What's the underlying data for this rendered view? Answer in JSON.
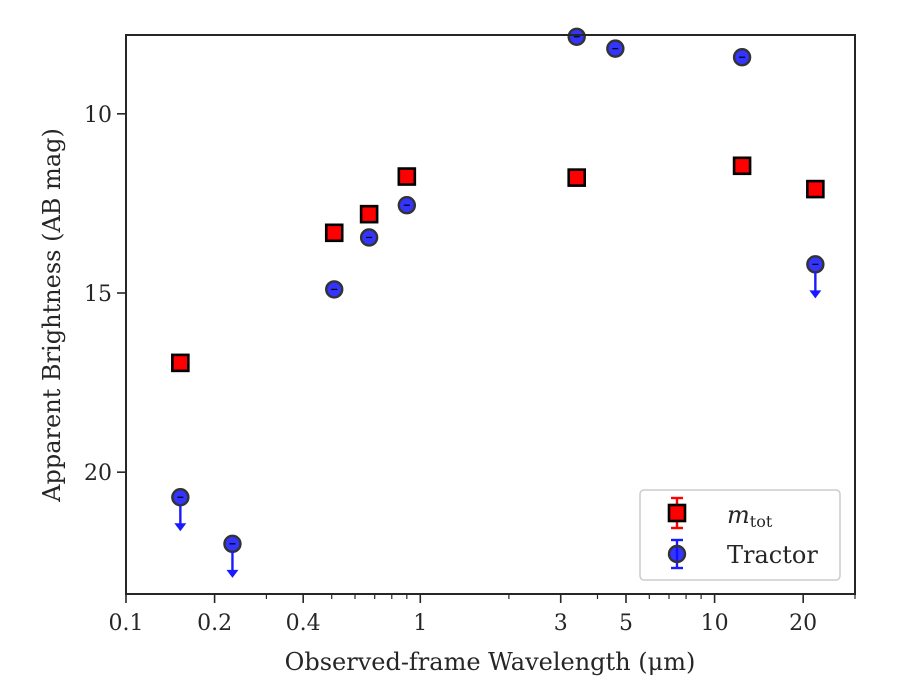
{
  "chart_data": {
    "type": "scatter",
    "title": "",
    "xlabel": "Observed-frame Wavelength (μm)",
    "ylabel": "Apparent Brightness (AB mag)",
    "xscale": "log",
    "xlim": [
      0.1,
      30
    ],
    "ylim": [
      23.4,
      7.8
    ],
    "y_inverted": true,
    "grid": false,
    "legend_position": "lower-right",
    "x_ticks": [
      {
        "value": 0.1,
        "label": "0.1"
      },
      {
        "value": 0.2,
        "label": "0.2"
      },
      {
        "value": 0.4,
        "label": "0.4"
      },
      {
        "value": 1,
        "label": "1"
      },
      {
        "value": 3,
        "label": "3"
      },
      {
        "value": 5,
        "label": "5"
      },
      {
        "value": 10,
        "label": "10"
      },
      {
        "value": 20,
        "label": "20"
      }
    ],
    "y_ticks": [
      {
        "value": 10,
        "label": "10"
      },
      {
        "value": 15,
        "label": "15"
      },
      {
        "value": 20,
        "label": "20"
      }
    ],
    "series": [
      {
        "name": "m_tot",
        "legend_main": "m",
        "legend_sub": "tot",
        "marker": "square",
        "color": "#ff0000",
        "edge_color": "#000000",
        "points": [
          {
            "x": 0.153,
            "y": 16.95
          },
          {
            "x": 0.51,
            "y": 13.32
          },
          {
            "x": 0.67,
            "y": 12.8
          },
          {
            "x": 0.9,
            "y": 11.75
          },
          {
            "x": 3.4,
            "y": 11.78
          },
          {
            "x": 12.4,
            "y": 11.45
          },
          {
            "x": 22.0,
            "y": 12.1
          }
        ]
      },
      {
        "name": "Tractor",
        "marker": "circle",
        "color": "#1010ff",
        "edge_color": "#333333",
        "points": [
          {
            "x": 0.153,
            "y": 20.7,
            "upper_limit": true
          },
          {
            "x": 0.23,
            "y": 22.0,
            "upper_limit": true
          },
          {
            "x": 0.51,
            "y": 14.9
          },
          {
            "x": 0.67,
            "y": 13.45
          },
          {
            "x": 0.9,
            "y": 12.55
          },
          {
            "x": 3.4,
            "y": 7.85
          },
          {
            "x": 4.6,
            "y": 8.18
          },
          {
            "x": 12.4,
            "y": 8.42
          },
          {
            "x": 22.0,
            "y": 14.2,
            "upper_limit": true
          }
        ]
      }
    ]
  }
}
